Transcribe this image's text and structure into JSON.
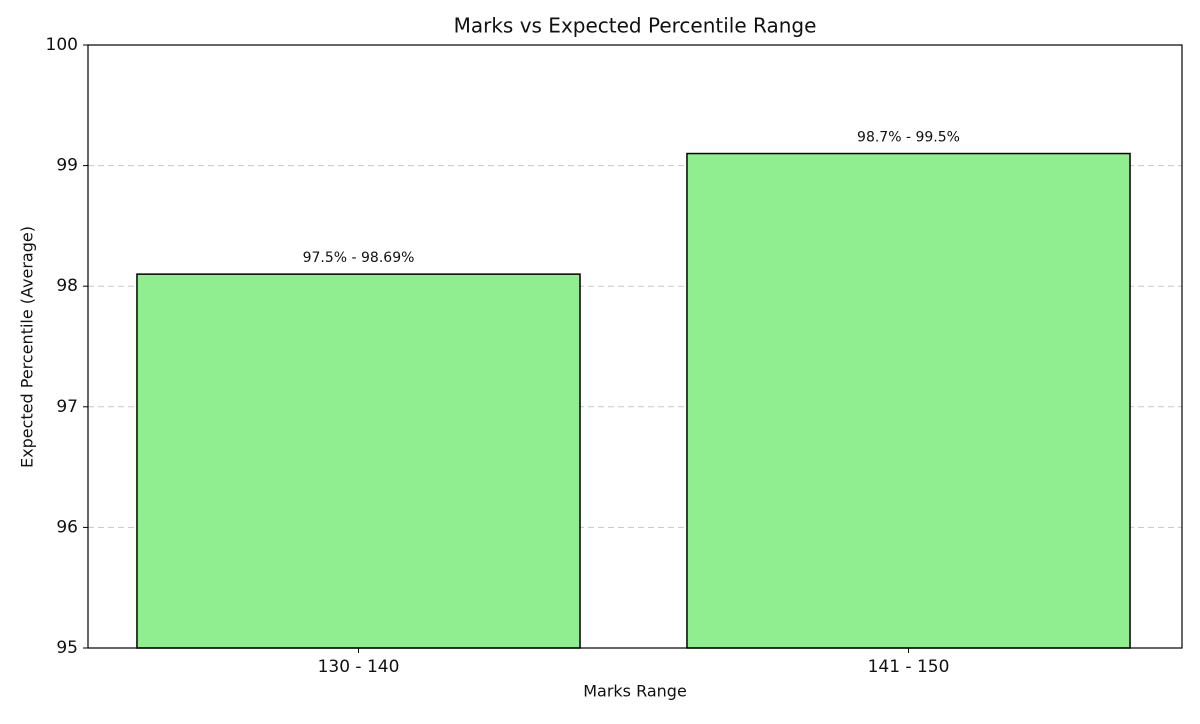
{
  "chart_data": {
    "type": "bar",
    "title": "Marks vs Expected Percentile Range",
    "x_label": "Marks Range",
    "y_label": "Expected Percentile (Average)",
    "categories": [
      "130 - 140",
      "141 - 150"
    ],
    "values": [
      98.1,
      99.1
    ],
    "annotations": [
      "97.5% - 98.69%",
      "98.7% - 99.5%"
    ],
    "color": "#90ee90",
    "edge_color": "#000000",
    "ylim": [
      95,
      100
    ],
    "yticks": [
      95,
      96,
      97,
      98,
      99,
      100
    ],
    "grid": true
  }
}
